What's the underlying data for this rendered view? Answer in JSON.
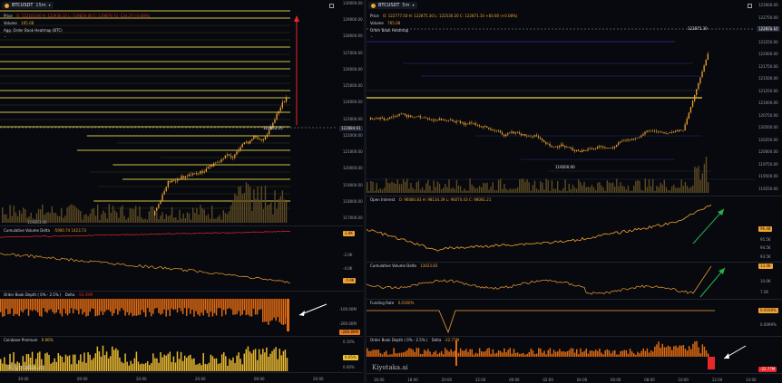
{
  "left": {
    "symbol": "BTCUSDT",
    "interval": "15m",
    "ohlc_label": "Price",
    "ohlc": "O: 122103.00 H: 122930.15 L: 119820.00 C: 119879.73 -124.27 (-0.08%)",
    "volume_label": "Volume",
    "volume_value": "165.08",
    "heatmap_label": "Agg. Order Book Heatmap (BTC)",
    "last_price": "122862.25",
    "last_price_tag": "122884.61",
    "low_label": "119263.00",
    "price_axis": [
      "130000.00",
      "129000.00",
      "128000.00",
      "127000.00",
      "126000.00",
      "125000.00",
      "124000.00",
      "123000.00",
      "122000.00",
      "121000.00",
      "120000.00",
      "119000.00",
      "118000.00",
      "117000.00"
    ],
    "cvd_label": "Cumulative Volume Delta",
    "cvd_values": "-5900.74  1423.73",
    "cvd_axis": [
      "2.8K",
      "-2.0K",
      "-4.0K",
      "-5.9K"
    ],
    "obd_label": "Order Book Depth ( 0% - 2.5% )",
    "obd_delta_label": "Delta",
    "obd_delta_value": "-54.39M",
    "obd_axis": [
      "-100.00M",
      "-200.00M",
      "-289.89M"
    ],
    "cp_label": "Coinbase Premium",
    "cp_value": "0.06%",
    "cp_axis": [
      "0.10%",
      "0.05%",
      "0.00%"
    ],
    "time_axis": [
      "20:00",
      "00:00",
      "20:00",
      "20:00",
      "00:00",
      "20:00"
    ],
    "watermark": "Kiyotaka.ai"
  },
  "right": {
    "symbol": "BTCUSDT",
    "interval": "5m",
    "ohlc_label": "Price",
    "ohlc": "O: 122777.50 H: 122875.30 L: 122530.20 C: 122871.10 +83.60 (+0.08%)",
    "volume_label": "Volume",
    "volume_value": "765.08",
    "heatmap_label": "Order Book Heatmap",
    "high_label": "122875.30",
    "last_price_tag": "122871.10",
    "low_label": "119200.00",
    "price_axis": [
      "123000.00",
      "122750.00",
      "122500.00",
      "122250.00",
      "122000.00",
      "121750.00",
      "121500.00",
      "121250.00",
      "121000.00",
      "120750.00",
      "120500.00",
      "120250.00",
      "120000.00",
      "119750.00",
      "119500.00",
      "119250.00"
    ],
    "oi_label": "Open Interest",
    "oi_values": "O: 96080.83 H: 98134.39 L: 96070.43 C: 98081.21",
    "oi_axis": [
      "96.48",
      "95.5K",
      "94.5K",
      "93.5K"
    ],
    "cvd_label": "Cumulative Volume Delta",
    "cvd_value": "13423.83",
    "cvd_axis": [
      "13.4K",
      "10.0K",
      "7.5K"
    ],
    "funding_label": "Funding Rate",
    "funding_value": "0.0100%",
    "funding_axis": [
      "0.0100%",
      "0.0099%"
    ],
    "obd_label": "Order Book Depth ( 0% - 2.5% )",
    "obd_delta_label": "Delta",
    "obd_delta_value": "-22.77M",
    "obd_axis": [
      "-22.77M"
    ],
    "time_axis": [
      "16:00",
      "18:00",
      "20:00",
      "22:00",
      "00:00",
      "02:00",
      "04:00",
      "06:00",
      "08:00",
      "10:00",
      "12:00",
      "14:00"
    ],
    "watermark": "Kiyotaka.ai"
  },
  "colors": {
    "candle": "#f2a331",
    "heat_line": "#e6e35a",
    "red": "#e6282b",
    "green": "#27b24a",
    "bg": "#07090e"
  }
}
